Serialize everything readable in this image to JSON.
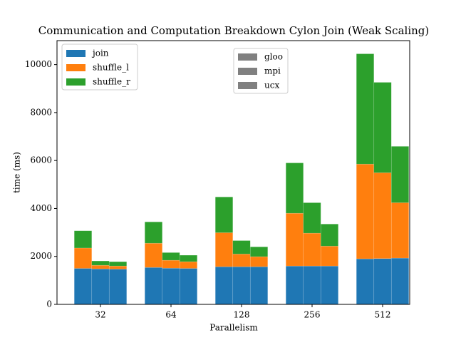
{
  "chart_data": {
    "type": "grouped-stacked-bar",
    "title": "Communication and Computation Breakdown Cylon Join (Weak Scaling)",
    "x_label": "Parallelism",
    "y_label": "time (ms)",
    "categories": [
      "32",
      "64",
      "128",
      "256",
      "512"
    ],
    "groups": [
      "gloo",
      "mpi",
      "ucx"
    ],
    "group_color": "#808080",
    "series": [
      {
        "name": "join",
        "color": "#1f77b4",
        "values": [
          [
            1500,
            1480,
            1470
          ],
          [
            1540,
            1510,
            1500
          ],
          [
            1570,
            1570,
            1570
          ],
          [
            1600,
            1600,
            1600
          ],
          [
            1900,
            1910,
            1930
          ]
        ]
      },
      {
        "name": "shuffle_l",
        "color": "#ff7f0e",
        "values": [
          [
            850,
            150,
            130
          ],
          [
            1010,
            330,
            280
          ],
          [
            1420,
            530,
            420
          ],
          [
            2200,
            1370,
            830
          ],
          [
            3950,
            3580,
            2310
          ]
        ]
      },
      {
        "name": "shuffle_r",
        "color": "#2ca02c",
        "values": [
          [
            720,
            180,
            180
          ],
          [
            890,
            320,
            270
          ],
          [
            1490,
            560,
            410
          ],
          [
            2100,
            1270,
            920
          ],
          [
            4600,
            3770,
            2350
          ]
        ]
      }
    ],
    "ylim": [
      0,
      11000
    ],
    "yticks": [
      0,
      2000,
      4000,
      6000,
      8000,
      10000
    ]
  }
}
